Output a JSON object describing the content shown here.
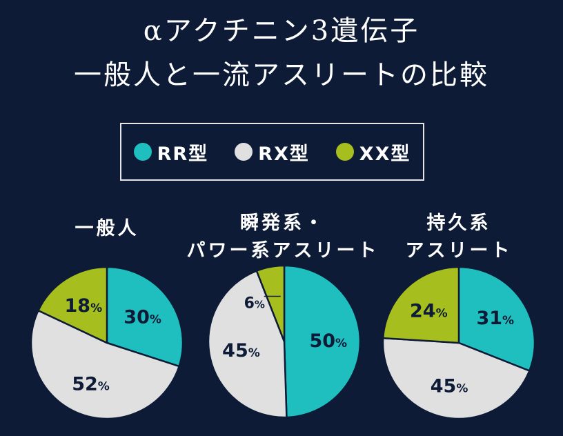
{
  "title": {
    "line1": "αアクチニン3遺伝子",
    "line2": "一般人と一流アスリートの比較"
  },
  "colors": {
    "background": "#0d1b36",
    "RR": "#1fbfbf",
    "RX": "#e0e0e0",
    "XX": "#a6bf1f"
  },
  "legend": [
    {
      "label": "RR型",
      "color_key": "RR"
    },
    {
      "label": "RX型",
      "color_key": "RX"
    },
    {
      "label": "XX型",
      "color_key": "XX"
    }
  ],
  "chart_data": [
    {
      "type": "pie",
      "title_lines": [
        "一般人"
      ],
      "slices": [
        {
          "category": "RR型",
          "value": 30,
          "label": "30%"
        },
        {
          "category": "RX型",
          "value": 52,
          "label": "52%"
        },
        {
          "category": "XX型",
          "value": 18,
          "label": "18%"
        }
      ]
    },
    {
      "type": "pie",
      "title_lines": [
        "瞬発系・",
        "パワー系アスリート"
      ],
      "slices": [
        {
          "category": "RR型",
          "value": 50,
          "label": "50%"
        },
        {
          "category": "RX型",
          "value": 45,
          "label": "45%"
        },
        {
          "category": "XX型",
          "value": 6,
          "label": "6%"
        }
      ]
    },
    {
      "type": "pie",
      "title_lines": [
        "持久系",
        "アスリート"
      ],
      "slices": [
        {
          "category": "RR型",
          "value": 31,
          "label": "31%"
        },
        {
          "category": "RX型",
          "value": 45,
          "label": "45%"
        },
        {
          "category": "XX型",
          "value": 24,
          "label": "24%"
        }
      ]
    }
  ]
}
